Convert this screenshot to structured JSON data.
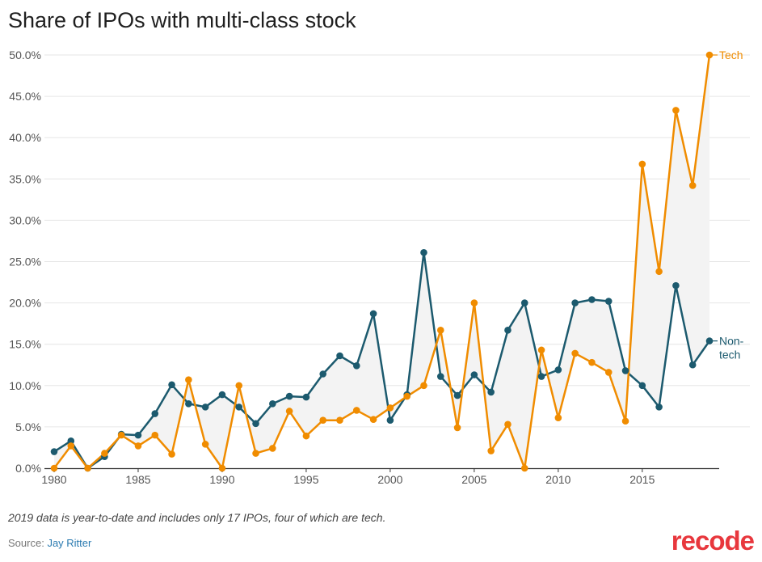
{
  "title": "Share of IPOs with multi-class stock",
  "note": "2019 data is year-to-date and includes only 17 IPOs, four of which are tech.",
  "source": {
    "label": "Source:",
    "link_text": "Jay Ritter"
  },
  "logo_text": "recode",
  "colors": {
    "tech": "#f08c00",
    "nontech": "#1c5a6e",
    "fill": "#f3f3f3",
    "grid": "#e6e6e6",
    "axis": "#333333",
    "link": "#2a7ab0",
    "logo": "#e8373d"
  },
  "chart_data": {
    "type": "line",
    "title": "Share of IPOs with multi-class stock",
    "x": [
      1980,
      1981,
      1982,
      1983,
      1984,
      1985,
      1986,
      1987,
      1988,
      1989,
      1990,
      1991,
      1992,
      1993,
      1994,
      1995,
      1996,
      1997,
      1998,
      1999,
      2000,
      2001,
      2002,
      2003,
      2004,
      2005,
      2006,
      2007,
      2008,
      2009,
      2010,
      2011,
      2012,
      2013,
      2014,
      2015,
      2016,
      2017,
      2018,
      2019
    ],
    "xticks": [
      1980,
      1985,
      1990,
      1995,
      2000,
      2005,
      2010,
      2015
    ],
    "xlim": [
      1980,
      2019
    ],
    "ylim": [
      0,
      50
    ],
    "yticks": [
      0,
      5,
      10,
      15,
      20,
      25,
      30,
      35,
      40,
      45,
      50
    ],
    "ytick_labels": [
      "0.0%",
      "5.0%",
      "10.0%",
      "15.0%",
      "20.0%",
      "25.0%",
      "30.0%",
      "35.0%",
      "40.0%",
      "45.0%",
      "50.0%"
    ],
    "grid": true,
    "series": [
      {
        "name": "Tech",
        "label_lines": [
          "Tech"
        ],
        "color": "#f08c00",
        "values": [
          0,
          2.7,
          0,
          1.8,
          4.0,
          2.7,
          4.0,
          1.7,
          10.7,
          2.9,
          0,
          10.0,
          1.8,
          2.4,
          6.9,
          3.9,
          5.8,
          5.8,
          7.0,
          5.9,
          7.3,
          8.7,
          10.0,
          16.7,
          4.9,
          20.0,
          2.1,
          5.3,
          0,
          14.3,
          6.1,
          13.9,
          12.8,
          11.6,
          5.7,
          36.8,
          23.8,
          43.3,
          34.2,
          50.0
        ]
      },
      {
        "name": "Non-tech",
        "label_lines": [
          "Non-",
          "tech"
        ],
        "color": "#1c5a6e",
        "values": [
          2.0,
          3.3,
          0,
          1.4,
          4.1,
          4.0,
          6.6,
          10.1,
          7.8,
          7.4,
          8.9,
          7.4,
          5.4,
          7.8,
          8.7,
          8.6,
          11.4,
          13.6,
          12.4,
          18.7,
          5.8,
          8.9,
          26.1,
          11.1,
          8.8,
          11.3,
          9.2,
          16.7,
          20.0,
          11.1,
          11.9,
          20.0,
          20.4,
          20.2,
          11.8,
          10.0,
          7.4,
          22.1,
          12.5,
          15.4
        ]
      }
    ]
  }
}
